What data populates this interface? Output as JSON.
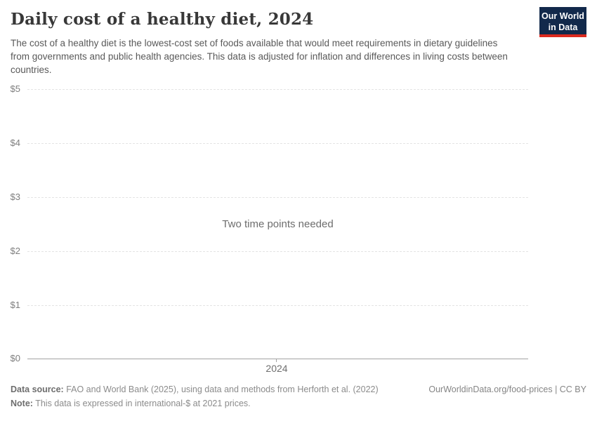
{
  "header": {
    "title": "Daily cost of a healthy diet, 2024",
    "subtitle": "The cost of a healthy diet is the lowest-cost set of foods available that would meet requirements in dietary guidelines from governments and public health agencies. This data is adjusted for inflation and differences in living costs between countries.",
    "logo": {
      "line1": "Our World",
      "line2": "in Data"
    }
  },
  "chart_data": {
    "type": "line",
    "title": "Daily cost of a healthy diet, 2024",
    "empty_state_message": "Two time points needed",
    "series": [],
    "y_axis": {
      "tick_labels": [
        "$5",
        "$4",
        "$3",
        "$2",
        "$1",
        "$0"
      ],
      "ylim": [
        0,
        5
      ],
      "unit": "international-$"
    },
    "x_axis": {
      "tick_labels": [
        "2024"
      ]
    },
    "grid": "horizontal dashed, solid baseline at $0",
    "legend": "none"
  },
  "colors": {
    "logo_bg": "#12294b",
    "logo_accent": "#dc2a1f",
    "gridline": "#e4e4e4",
    "axis_line": "#a2a2a2",
    "title_text": "#383838",
    "subtitle_text": "#595959"
  },
  "footer": {
    "source_label": "Data source:",
    "source_text": " FAO and World Bank (2025), using data and methods from Herforth et al. (2022)",
    "note_label": "Note:",
    "note_text": " This data is expressed in international-$ at 2021 prices.",
    "credit": "OurWorldinData.org/food-prices | CC BY"
  }
}
